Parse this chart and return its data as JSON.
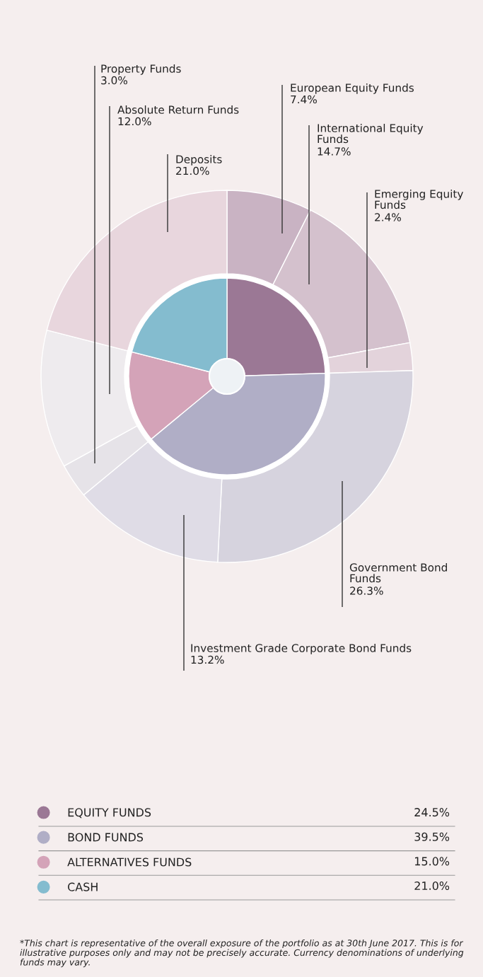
{
  "chart_data": {
    "type": "donut",
    "legend": "bottom",
    "categories": [
      "European Equity Funds",
      "International Equity Funds",
      "Emerging Equity Funds",
      "Government Bond Funds",
      "Investment Grade Corporate Bond Funds",
      "Property Funds",
      "Absolute Return Funds",
      "Deposits",
      "EQUITY FUNDS",
      "BOND FUNDS",
      "ALTERNATIVES FUNDS",
      "CASH"
    ],
    "colors": [
      "#c9b3c3",
      "#d4c1cd",
      "#e3d3db",
      "#d6d3de",
      "#dfdce6",
      "#e6e3e8",
      "#eeebee",
      "#e8d6dd",
      "#9b7895",
      "#b0aec6",
      "#d4a3b8",
      "#84bccf"
    ],
    "series": [
      {
        "values": [
          7.4,
          14.7,
          2.4,
          26.3,
          13.2,
          3.0,
          12.0,
          21.0,
          null,
          null,
          null,
          null
        ],
        "value_labels": [
          "7.4%",
          "14.7%",
          "2.4%",
          "26.3%",
          "13.2%",
          "3.0%",
          "12.0%",
          "21.0%",
          null,
          null,
          null,
          null
        ]
      },
      {
        "values": [
          null,
          null,
          null,
          null,
          null,
          null,
          null,
          null,
          24.5,
          39.5,
          15.0,
          21.0
        ],
        "value_labels": [
          null,
          null,
          null,
          null,
          null,
          null,
          null,
          null,
          "24.5%",
          "39.5%",
          "15.0%",
          "21.0%"
        ]
      }
    ],
    "annotations": [
      "*This chart is representative of the overall exposure of the portfolio as at 30th June 2017. This is for illustrative purposes only and may not be precisely accurate. Currency denominations of underlying funds may vary."
    ]
  }
}
